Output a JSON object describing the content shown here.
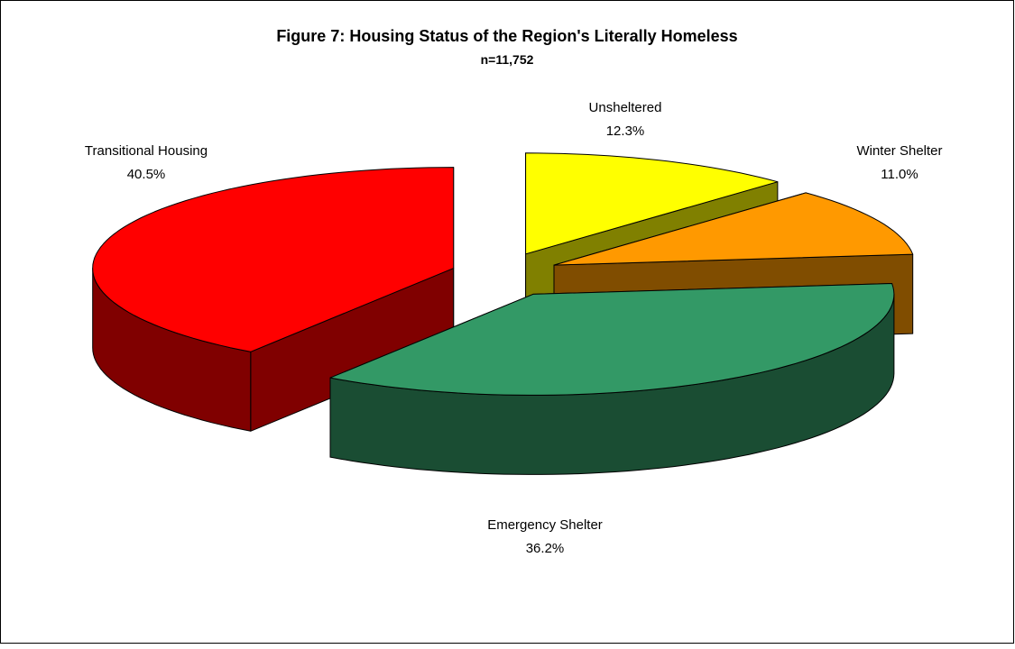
{
  "chart_data": {
    "type": "pie",
    "title": "Figure 7: Housing Status of the Region's Literally Homeless",
    "subtitle": "n=11,752",
    "categories": [
      "Unsheltered",
      "Winter Shelter",
      "Emergency Shelter",
      "Transitional Housing"
    ],
    "values": [
      12.3,
      11.0,
      36.2,
      40.5
    ],
    "value_labels": [
      "12.3%",
      "11.0%",
      "36.2%",
      "40.5%"
    ],
    "colors": [
      "#ffff00",
      "#ff9900",
      "#339966",
      "#ff0000"
    ]
  }
}
